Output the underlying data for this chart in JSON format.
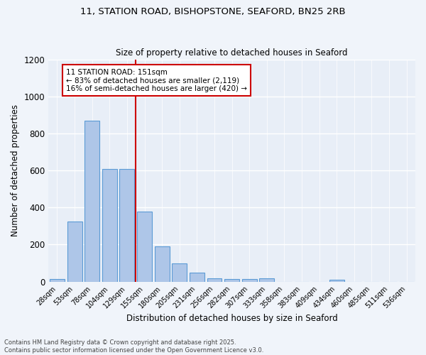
{
  "title1": "11, STATION ROAD, BISHOPSTONE, SEAFORD, BN25 2RB",
  "title2": "Size of property relative to detached houses in Seaford",
  "xlabel": "Distribution of detached houses by size in Seaford",
  "ylabel": "Number of detached properties",
  "categories": [
    "28sqm",
    "53sqm",
    "78sqm",
    "104sqm",
    "129sqm",
    "155sqm",
    "180sqm",
    "205sqm",
    "231sqm",
    "256sqm",
    "282sqm",
    "307sqm",
    "333sqm",
    "358sqm",
    "383sqm",
    "409sqm",
    "434sqm",
    "460sqm",
    "485sqm",
    "511sqm",
    "536sqm"
  ],
  "values": [
    15,
    325,
    870,
    608,
    608,
    380,
    190,
    100,
    47,
    18,
    15,
    15,
    18,
    0,
    0,
    0,
    12,
    0,
    0,
    0,
    0
  ],
  "bar_color": "#aec6e8",
  "bar_edge_color": "#5b9bd5",
  "vline_x": 4.5,
  "vline_color": "#cc0000",
  "annotation_text": "11 STATION ROAD: 151sqm\n← 83% of detached houses are smaller (2,119)\n16% of semi-detached houses are larger (420) →",
  "annotation_box_color": "#ffffff",
  "annotation_box_edge": "#cc0000",
  "ylim": [
    0,
    1200
  ],
  "yticks": [
    0,
    200,
    400,
    600,
    800,
    1000,
    1200
  ],
  "background_color": "#e8eef7",
  "grid_color": "#ffffff",
  "footer1": "Contains HM Land Registry data © Crown copyright and database right 2025.",
  "footer2": "Contains public sector information licensed under the Open Government Licence v3.0."
}
